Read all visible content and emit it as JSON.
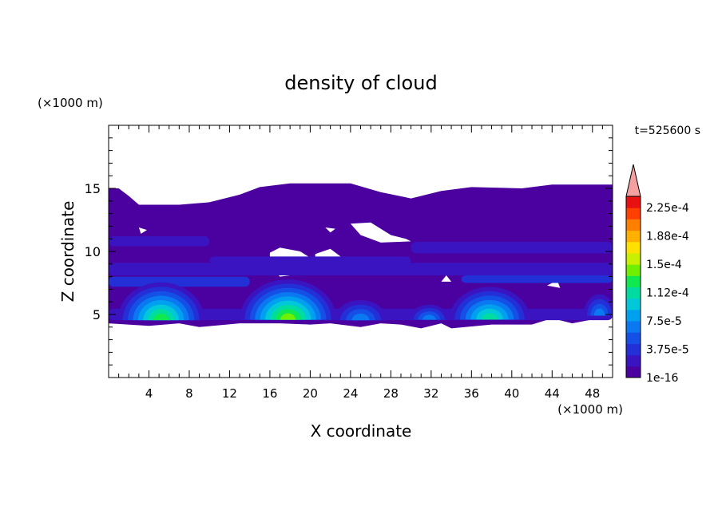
{
  "chart_data": {
    "type": "heatmap",
    "title": "density of cloud",
    "time_label": "t=525600 s",
    "xlabel": "X coordinate",
    "ylabel": "Z coordinate",
    "x_unit": "(×1000 m)",
    "y_unit": "(×1000 m)",
    "xlim": [
      0,
      50
    ],
    "ylim": [
      0,
      20
    ],
    "x_ticks": [
      "4",
      "8",
      "12",
      "16",
      "20",
      "24",
      "28",
      "32",
      "36",
      "40",
      "44",
      "48"
    ],
    "y_ticks": [
      "5",
      "10",
      "15"
    ],
    "colorbar": {
      "levels": [
        "1e-16",
        "3.75e-5",
        "7.5e-5",
        "1.12e-4",
        "1.5e-4",
        "1.88e-4",
        "2.25e-4"
      ],
      "colors": [
        "#4b00a0",
        "#3a14c0",
        "#2330d8",
        "#1450e6",
        "#0a78f0",
        "#00a0f0",
        "#00c8d8",
        "#00dca0",
        "#10e850",
        "#70f000",
        "#c8f000",
        "#ffe000",
        "#ffb000",
        "#ff8000",
        "#ff4000",
        "#e81010"
      ],
      "extend_color": "#f4a0a0"
    },
    "cloud_layer_z": [
      4.2,
      15.5
    ],
    "dense_cores": [
      {
        "x": 5,
        "z": 6.3,
        "max": "1.5e-4"
      },
      {
        "x": 17.5,
        "z": 6.4,
        "max": "1.5e-4"
      },
      {
        "x": 25,
        "z": 5.3,
        "max": "7.5e-5"
      },
      {
        "x": 31.5,
        "z": 5.2,
        "max": "7.5e-5"
      },
      {
        "x": 37.5,
        "z": 6.0,
        "max": "1.12e-4"
      },
      {
        "x": 48.5,
        "z": 5.6,
        "max": "7.5e-5"
      }
    ]
  }
}
